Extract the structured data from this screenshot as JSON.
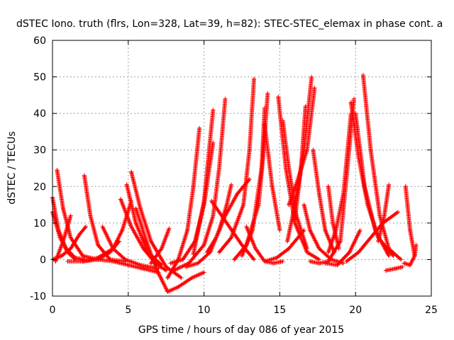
{
  "chart_data": {
    "type": "scatter",
    "title": "dSTEC Iono. truth (flrs, Lon=328, Lat=39, h=82): STEC-STEC_elemax in phase cont. a",
    "xlabel": "GPS time / hours of day 086 of year 2015",
    "ylabel": "dSTEC  / TECUs",
    "xlim": [
      0,
      25
    ],
    "ylim": [
      -10,
      60
    ],
    "x_ticks": [
      "0",
      "5",
      "10",
      "15",
      "20",
      "25"
    ],
    "y_ticks": [
      "-10",
      "0",
      "10",
      "20",
      "30",
      "40",
      "50",
      "60"
    ],
    "grid": true,
    "marker": "+",
    "colors": {
      "series": "#ff0000",
      "grid": "#a0a0a0"
    },
    "series": [
      {
        "x": [
          0.0,
          0.4,
          0.9,
          1.5,
          2.1
        ],
        "y": [
          17,
          8,
          3,
          0.5,
          0
        ]
      },
      {
        "x": [
          0.0,
          0.5,
          1.0,
          1.5
        ],
        "y": [
          13,
          6,
          2,
          0
        ]
      },
      {
        "x": [
          0.3,
          0.7,
          1.2,
          2.0,
          3.0,
          4.0
        ],
        "y": [
          24.5,
          14,
          6,
          1,
          0,
          -0.5
        ]
      },
      {
        "x": [
          0.0,
          0.6,
          1.2,
          1.8,
          2.2
        ],
        "y": [
          0,
          1,
          3,
          7,
          9
        ]
      },
      {
        "x": [
          0.2,
          0.7,
          1.2
        ],
        "y": [
          -0.5,
          5,
          12
        ]
      },
      {
        "x": [
          2.1,
          2.5,
          3.0,
          3.8,
          4.8
        ],
        "y": [
          23,
          12,
          4,
          0,
          -0.5
        ]
      },
      {
        "x": [
          2.0,
          3.0,
          4.0,
          4.6,
          5.2
        ],
        "y": [
          -0.5,
          0.5,
          3,
          8,
          16
        ]
      },
      {
        "x": [
          3.3,
          4.0,
          4.8,
          5.8,
          7.0
        ],
        "y": [
          9,
          3,
          0,
          -1.5,
          -2.5
        ]
      },
      {
        "x": [
          1.0,
          2.0,
          3.0,
          3.8,
          4.4
        ],
        "y": [
          -0.5,
          -0.5,
          0,
          2,
          5
        ]
      },
      {
        "x": [
          4.9,
          5.5,
          6.3,
          7.2
        ],
        "y": [
          20.5,
          10,
          2,
          -1.5
        ]
      },
      {
        "x": [
          5.2,
          5.8,
          6.5,
          7.5,
          8.5
        ],
        "y": [
          24,
          14,
          5,
          -2,
          -5
        ]
      },
      {
        "x": [
          4.5,
          5.2,
          6.0,
          6.8,
          7.5
        ],
        "y": [
          16.5,
          9,
          3,
          -1,
          -3
        ]
      },
      {
        "x": [
          4.0,
          5.0,
          6.0,
          7.0
        ],
        "y": [
          -0.5,
          -1.5,
          -2.5,
          -3.5
        ]
      },
      {
        "x": [
          5.5,
          6.2,
          6.9,
          7.6,
          8.3,
          9.2,
          10.0
        ],
        "y": [
          14,
          5,
          -3,
          -8.8,
          -7.5,
          -5,
          -3.5
        ]
      },
      {
        "x": [
          7.6,
          8.3,
          8.9,
          9.3,
          9.7
        ],
        "y": [
          -5,
          0,
          8,
          20,
          36
        ]
      },
      {
        "x": [
          6.5,
          7.2,
          7.7
        ],
        "y": [
          -1,
          3,
          8.5
        ]
      },
      {
        "x": [
          7.8,
          8.6,
          9.4,
          10.0,
          10.6
        ],
        "y": [
          -1,
          0,
          5,
          15,
          32
        ]
      },
      {
        "x": [
          8.0,
          9.0,
          10.0,
          10.6,
          11.0,
          11.4
        ],
        "y": [
          -3,
          -1,
          4,
          12,
          25,
          44
        ]
      },
      {
        "x": [
          8.8,
          9.6,
          10.4,
          11.0,
          11.5,
          11.8
        ],
        "y": [
          -2,
          -1,
          2,
          8,
          15,
          20.5
        ]
      },
      {
        "x": [
          9.3,
          10.0,
          10.6
        ],
        "y": [
          1.5,
          16,
          41
        ]
      },
      {
        "x": [
          10.2,
          10.8,
          11.4,
          12.2,
          13.0
        ],
        "y": [
          2,
          6,
          12,
          18,
          22
        ]
      },
      {
        "x": [
          10.5,
          11.5,
          12.5,
          13.3
        ],
        "y": [
          16,
          10,
          4,
          0
        ]
      },
      {
        "x": [
          11.0,
          11.8,
          12.6,
          13.0,
          13.3
        ],
        "y": [
          2,
          6,
          15,
          30,
          49.5
        ]
      },
      {
        "x": [
          12.0,
          12.8,
          13.6,
          13.9,
          14.2
        ],
        "y": [
          0,
          4,
          15,
          28,
          45.5
        ]
      },
      {
        "x": [
          12.5,
          13.2,
          13.8,
          14.0
        ],
        "y": [
          1,
          8,
          25,
          41.5
        ]
      },
      {
        "x": [
          12.8,
          13.4,
          14.0,
          14.6,
          15.2
        ],
        "y": [
          9,
          3,
          -0.5,
          -1,
          -0.5
        ]
      },
      {
        "x": [
          14.0,
          14.8,
          15.6,
          16.6
        ],
        "y": [
          -0.5,
          0.5,
          3,
          8
        ]
      },
      {
        "x": [
          14.0,
          14.5,
          15.0
        ],
        "y": [
          37,
          20,
          8
        ]
      },
      {
        "x": [
          14.9,
          15.4,
          16.0,
          16.8,
          17.6
        ],
        "y": [
          44.5,
          25,
          10,
          2,
          0
        ]
      },
      {
        "x": [
          15.2,
          15.6,
          16.1,
          16.8
        ],
        "y": [
          38,
          25,
          12,
          3
        ]
      },
      {
        "x": [
          15.5,
          16.0,
          16.6,
          17.1
        ],
        "y": [
          5,
          15,
          30,
          50
        ]
      },
      {
        "x": [
          15.6,
          16.2,
          16.8,
          17.3
        ],
        "y": [
          15,
          22,
          30,
          47
        ]
      },
      {
        "x": [
          16.0,
          16.4,
          16.7
        ],
        "y": [
          11,
          25,
          42
        ]
      },
      {
        "x": [
          16.6,
          17.0,
          17.6,
          18.4,
          19.2
        ],
        "y": [
          15,
          8,
          3,
          0,
          -1
        ]
      },
      {
        "x": [
          17.2,
          17.6,
          18.0,
          18.6
        ],
        "y": [
          30,
          18,
          8,
          2
        ]
      },
      {
        "x": [
          17.0,
          17.6,
          18.2,
          19.0,
          19.9
        ],
        "y": [
          -0.5,
          -1,
          -0.5,
          5,
          44
        ]
      },
      {
        "x": [
          18.2,
          18.5,
          18.9
        ],
        "y": [
          20,
          10,
          3
        ]
      },
      {
        "x": [
          18.0,
          18.8,
          19.6,
          20.3
        ],
        "y": [
          -1,
          -1.5,
          2,
          8
        ]
      },
      {
        "x": [
          18.2,
          18.7,
          19.2,
          19.7
        ],
        "y": [
          2,
          8,
          18,
          40
        ]
      },
      {
        "x": [
          19.7,
          20.2,
          20.8,
          21.5,
          22.5
        ],
        "y": [
          43,
          28,
          15,
          6,
          1
        ]
      },
      {
        "x": [
          20.0,
          20.6,
          21.3,
          22.2
        ],
        "y": [
          40,
          20,
          8,
          1
        ]
      },
      {
        "x": [
          20.5,
          21.0,
          21.6,
          22.2,
          23.0
        ],
        "y": [
          50.5,
          30,
          12,
          3,
          0
        ]
      },
      {
        "x": [
          19.4,
          20.2,
          21.0,
          21.8,
          22.8
        ],
        "y": [
          -0.5,
          2,
          6,
          10,
          13
        ]
      },
      {
        "x": [
          21.5,
          21.9,
          22.2
        ],
        "y": [
          5,
          12,
          20.5
        ]
      },
      {
        "x": [
          22.0,
          22.6,
          23.1
        ],
        "y": [
          -3,
          -2.5,
          -2
        ]
      },
      {
        "x": [
          23.3,
          23.6,
          23.9
        ],
        "y": [
          20,
          8,
          1
        ]
      },
      {
        "x": [
          23.2,
          23.6,
          23.9,
          24.0
        ],
        "y": [
          -1,
          -1.5,
          1,
          4
        ]
      }
    ]
  }
}
